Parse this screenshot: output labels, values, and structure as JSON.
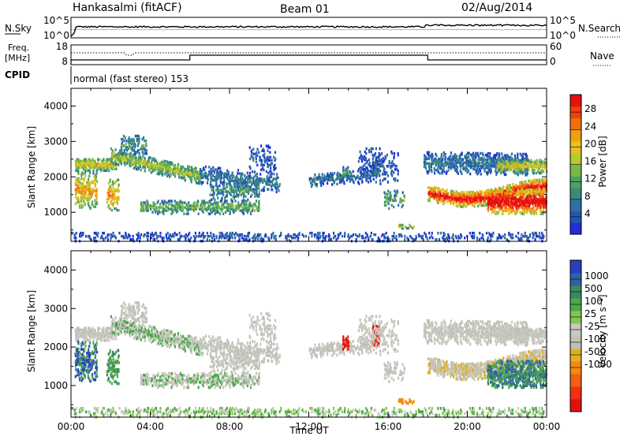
{
  "header": {
    "station": "Hankasalmi (fitACF)",
    "beam": "Beam 01",
    "date": "02/Aug/2014"
  },
  "top_panels": {
    "nsky_label": "N.Sky",
    "nsearch_label": "N.Search",
    "noise_ticks": [
      "10^5",
      "10^0"
    ],
    "freq_label_1": "Freq.",
    "freq_label_2": "[MHz]",
    "freq_ticks": [
      "18",
      "8"
    ],
    "nave_label": "Nave",
    "nave_ticks": [
      "60",
      "0"
    ],
    "cpid_label": "CPID",
    "cpid_text": "normal (fast stereo) 153"
  },
  "colors": {
    "power": [
      "#1f2fd6",
      "#2456b0",
      "#2f6fa8",
      "#3a8a7a",
      "#4fa060",
      "#78b844",
      "#b8c830",
      "#e8c020",
      "#f0a010",
      "#f07010",
      "#f04010",
      "#e81010"
    ],
    "velocity": [
      "#2a3fc0",
      "#2f62a8",
      "#3a8a60",
      "#4ea84a",
      "#80c850",
      "#c8c8c0",
      "#c0c0b8",
      "#e0b020",
      "#f08a10",
      "#f06010",
      "#f03010",
      "#e01010"
    ]
  },
  "chart_data": [
    {
      "type": "heatmap",
      "name": "power",
      "xlabel": "",
      "ylabel": "Slant Range [km]",
      "xlim": [
        0,
        24
      ],
      "ylim": [
        180,
        4500
      ],
      "yticks": [
        1000,
        2000,
        3000,
        4000
      ],
      "colorbar": {
        "label": "Power [dB]",
        "range": [
          0,
          32
        ],
        "ticks": [
          4,
          8,
          12,
          16,
          20,
          24,
          28
        ]
      }
    },
    {
      "type": "heatmap",
      "name": "velocity",
      "xlabel": "Time UT",
      "ylabel": "Slant Range [km]",
      "xlim": [
        0,
        24
      ],
      "ylim": [
        180,
        4500
      ],
      "x_tick_labels": [
        "00:00",
        "04:00",
        "08:00",
        "12:00",
        "16:00",
        "20:00",
        "00:00"
      ],
      "yticks": [
        1000,
        2000,
        3000,
        4000
      ],
      "colorbar": {
        "label": "Velocity [m s⁻¹]",
        "tick_labels": [
          "1000",
          "500",
          "100",
          "25",
          "-25",
          "-100",
          "-500",
          "-1000"
        ]
      }
    }
  ]
}
